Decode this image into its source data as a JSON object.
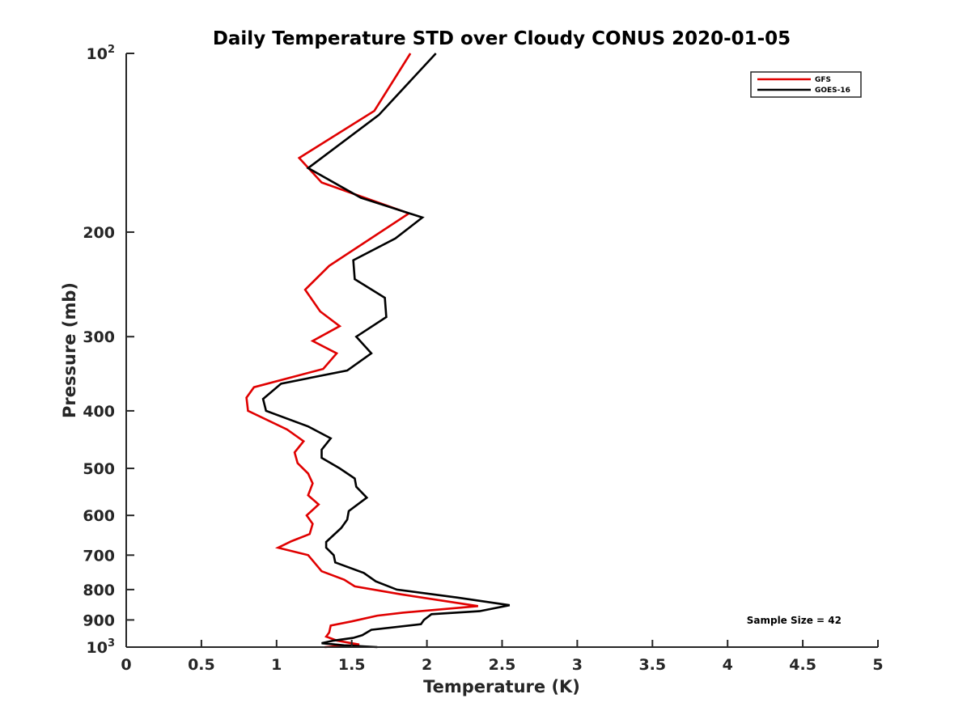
{
  "chart_data": {
    "type": "line",
    "title": "Daily Temperature STD over Cloudy CONUS 2020-01-05",
    "xlabel": "Temperature (K)",
    "ylabel": "Pressure (mb)",
    "xlim": [
      0,
      5
    ],
    "ylim": [
      100,
      1000
    ],
    "yscale": "log",
    "y_reversed": true,
    "grid": false,
    "legend_position": "top-right",
    "x_ticks": [
      0,
      0.5,
      1,
      1.5,
      2,
      2.5,
      3,
      3.5,
      4,
      4.5,
      5
    ],
    "x_tick_labels": [
      "0",
      "0.5",
      "1",
      "1.5",
      "2",
      "2.5",
      "3",
      "3.5",
      "4",
      "4.5",
      "5"
    ],
    "y_ticks": [
      {
        "value": 100,
        "base": "10",
        "exp": "2"
      },
      {
        "value": 200,
        "label": "200"
      },
      {
        "value": 300,
        "label": "300"
      },
      {
        "value": 400,
        "label": "400"
      },
      {
        "value": 500,
        "label": "500"
      },
      {
        "value": 600,
        "label": "600"
      },
      {
        "value": 700,
        "label": "700"
      },
      {
        "value": 800,
        "label": "800"
      },
      {
        "value": 900,
        "label": "900"
      },
      {
        "value": 1000,
        "base": "10",
        "exp": "3"
      }
    ],
    "series": [
      {
        "name": "GFS",
        "color": "#e00000",
        "points": [
          [
            1.89,
            100
          ],
          [
            1.65,
            125
          ],
          [
            1.15,
            150
          ],
          [
            1.3,
            165
          ],
          [
            1.88,
            186
          ],
          [
            1.35,
            228
          ],
          [
            1.19,
            250
          ],
          [
            1.29,
            272
          ],
          [
            1.42,
            288
          ],
          [
            1.24,
            305
          ],
          [
            1.4,
            320
          ],
          [
            1.31,
            340
          ],
          [
            0.85,
            365
          ],
          [
            0.8,
            380
          ],
          [
            0.81,
            400
          ],
          [
            1.07,
            430
          ],
          [
            1.18,
            450
          ],
          [
            1.12,
            470
          ],
          [
            1.14,
            490
          ],
          [
            1.21,
            510
          ],
          [
            1.24,
            530
          ],
          [
            1.21,
            555
          ],
          [
            1.28,
            575
          ],
          [
            1.2,
            600
          ],
          [
            1.24,
            620
          ],
          [
            1.22,
            645
          ],
          [
            1.1,
            663
          ],
          [
            1.01,
            680
          ],
          [
            1.21,
            700
          ],
          [
            1.3,
            745
          ],
          [
            1.45,
            770
          ],
          [
            1.52,
            790
          ],
          [
            1.83,
            815
          ],
          [
            2.34,
            853
          ],
          [
            1.84,
            875
          ],
          [
            1.67,
            885
          ],
          [
            1.5,
            905
          ],
          [
            1.36,
            920
          ],
          [
            1.35,
            945
          ],
          [
            1.33,
            960
          ],
          [
            1.4,
            975
          ],
          [
            1.55,
            990
          ],
          [
            1.32,
            1000
          ]
        ]
      },
      {
        "name": "GOES-16",
        "color": "#000000",
        "points": [
          [
            2.06,
            100
          ],
          [
            1.68,
            127
          ],
          [
            1.21,
            156
          ],
          [
            1.56,
            175
          ],
          [
            1.97,
            189
          ],
          [
            1.79,
            205
          ],
          [
            1.51,
            223
          ],
          [
            1.52,
            240
          ],
          [
            1.72,
            258
          ],
          [
            1.73,
            278
          ],
          [
            1.53,
            300
          ],
          [
            1.63,
            320
          ],
          [
            1.47,
            342
          ],
          [
            1.03,
            360
          ],
          [
            0.91,
            382
          ],
          [
            0.93,
            400
          ],
          [
            1.21,
            425
          ],
          [
            1.36,
            445
          ],
          [
            1.3,
            465
          ],
          [
            1.3,
            480
          ],
          [
            1.42,
            500
          ],
          [
            1.52,
            520
          ],
          [
            1.53,
            537
          ],
          [
            1.6,
            560
          ],
          [
            1.48,
            590
          ],
          [
            1.47,
            610
          ],
          [
            1.43,
            630
          ],
          [
            1.33,
            665
          ],
          [
            1.33,
            680
          ],
          [
            1.38,
            700
          ],
          [
            1.39,
            720
          ],
          [
            1.58,
            750
          ],
          [
            1.66,
            775
          ],
          [
            1.8,
            800
          ],
          [
            2.2,
            825
          ],
          [
            2.55,
            850
          ],
          [
            2.35,
            870
          ],
          [
            2.03,
            880
          ],
          [
            1.98,
            900
          ],
          [
            1.96,
            915
          ],
          [
            1.63,
            935
          ],
          [
            1.57,
            955
          ],
          [
            1.51,
            965
          ],
          [
            1.38,
            975
          ],
          [
            1.3,
            985
          ],
          [
            1.45,
            993
          ],
          [
            1.67,
            1000
          ]
        ]
      }
    ],
    "annotation": "Sample Size = 42"
  }
}
